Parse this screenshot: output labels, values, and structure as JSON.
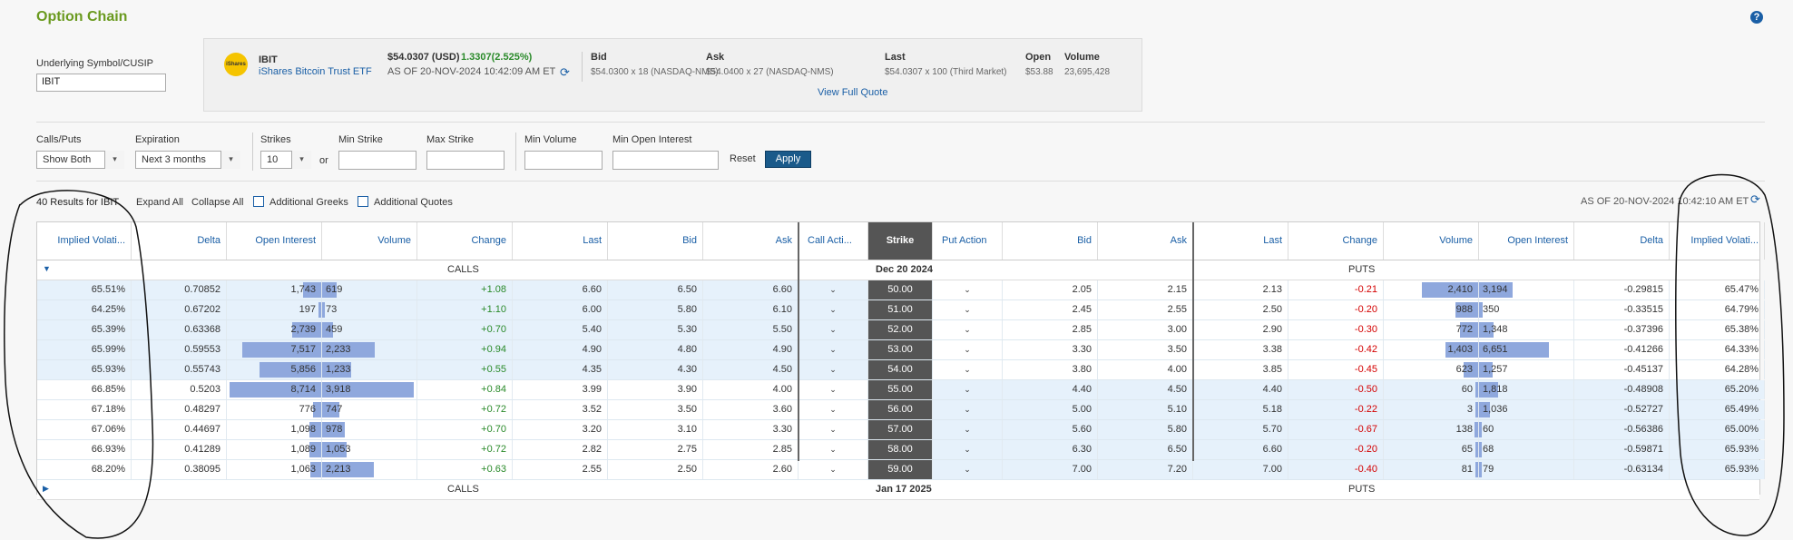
{
  "page": {
    "title": "Option Chain"
  },
  "underlying": {
    "label": "Underlying Symbol/CUSIP",
    "value": "IBIT"
  },
  "quote": {
    "logo_text": "iShares",
    "symbol": "IBIT",
    "name": "iShares Bitcoin Trust ETF",
    "price": "$54.0307 (USD)",
    "change": "1.3307(2.525%)",
    "asof": "AS OF 20-NOV-2024  10:42:09 AM ET",
    "bid_label": "Bid",
    "bid_value": "$54.0300 x 18 (NASDAQ-NMS)",
    "ask_label": "Ask",
    "ask_value": "$54.0400 x 27 (NASDAQ-NMS)",
    "last_label": "Last",
    "last_value": "$54.0307 x 100 (Third Market)",
    "open_label": "Open",
    "open_value": "$53.88",
    "volume_label": "Volume",
    "volume_value": "23,695,428",
    "full_quote": "View Full Quote"
  },
  "filters": {
    "calls_puts_label": "Calls/Puts",
    "calls_puts_value": "Show Both",
    "expiration_label": "Expiration",
    "expiration_value": "Next 3 months",
    "strikes_label": "Strikes",
    "strikes_value": "10",
    "or": "or",
    "min_strike_label": "Min Strike",
    "max_strike_label": "Max Strike",
    "min_volume_label": "Min Volume",
    "min_oi_label": "Min Open Interest",
    "reset": "Reset",
    "apply": "Apply"
  },
  "results": {
    "count_text": "40 Results for IBIT",
    "expand_all": "Expand All",
    "collapse_all": "Collapse All",
    "additional_greeks": "Additional Greeks",
    "additional_quotes": "Additional Quotes",
    "asof": "AS OF 20-NOV-2024  10:42:10 AM ET"
  },
  "table": {
    "headers": [
      "Implied Volati...",
      "Delta",
      "Open Interest",
      "Volume",
      "Change",
      "Last",
      "Bid",
      "Ask",
      "Call Acti...",
      "Strike",
      "Put Action",
      "Bid",
      "Ask",
      "Last",
      "Change",
      "Volume",
      "Open Interest",
      "Delta",
      "Implied Volati..."
    ],
    "sections": [
      {
        "calls": "CALLS",
        "date": "Dec 20 2024",
        "puts": "PUTS"
      },
      {
        "calls": "CALLS",
        "date": "Jan 17 2025",
        "puts": "PUTS"
      }
    ],
    "rows": [
      {
        "c_iv": "65.51%",
        "c_delta": "0.70852",
        "c_oi": "1,743",
        "c_vol": "619",
        "c_chg": "+1.08",
        "c_last": "6.60",
        "c_bid": "6.50",
        "c_ask": "6.60",
        "strike": "50.00",
        "p_bid": "2.05",
        "p_ask": "2.15",
        "p_last": "2.13",
        "p_chg": "-0.21",
        "p_vol": "2,410",
        "p_oi": "3,194",
        "p_delta": "-0.29815",
        "p_iv": "65.47%",
        "c_itm": true,
        "p_itm": false
      },
      {
        "c_iv": "64.25%",
        "c_delta": "0.67202",
        "c_oi": "197",
        "c_vol": "73",
        "c_chg": "+1.10",
        "c_last": "6.00",
        "c_bid": "5.80",
        "c_ask": "6.10",
        "strike": "51.00",
        "p_bid": "2.45",
        "p_ask": "2.55",
        "p_last": "2.50",
        "p_chg": "-0.20",
        "p_vol": "988",
        "p_oi": "350",
        "p_delta": "-0.33515",
        "p_iv": "64.79%",
        "c_itm": true,
        "p_itm": false
      },
      {
        "c_iv": "65.39%",
        "c_delta": "0.63368",
        "c_oi": "2,739",
        "c_vol": "459",
        "c_chg": "+0.70",
        "c_last": "5.40",
        "c_bid": "5.30",
        "c_ask": "5.50",
        "strike": "52.00",
        "p_bid": "2.85",
        "p_ask": "3.00",
        "p_last": "2.90",
        "p_chg": "-0.30",
        "p_vol": "772",
        "p_oi": "1,348",
        "p_delta": "-0.37396",
        "p_iv": "65.38%",
        "c_itm": true,
        "p_itm": false
      },
      {
        "c_iv": "65.99%",
        "c_delta": "0.59553",
        "c_oi": "7,517",
        "c_vol": "2,233",
        "c_chg": "+0.94",
        "c_last": "4.90",
        "c_bid": "4.80",
        "c_ask": "4.90",
        "strike": "53.00",
        "p_bid": "3.30",
        "p_ask": "3.50",
        "p_last": "3.38",
        "p_chg": "-0.42",
        "p_vol": "1,403",
        "p_oi": "6,651",
        "p_delta": "-0.41266",
        "p_iv": "64.33%",
        "c_itm": true,
        "p_itm": false
      },
      {
        "c_iv": "65.93%",
        "c_delta": "0.55743",
        "c_oi": "5,856",
        "c_vol": "1,233",
        "c_chg": "+0.55",
        "c_last": "4.35",
        "c_bid": "4.30",
        "c_ask": "4.50",
        "strike": "54.00",
        "p_bid": "3.80",
        "p_ask": "4.00",
        "p_last": "3.85",
        "p_chg": "-0.45",
        "p_vol": "623",
        "p_oi": "1,257",
        "p_delta": "-0.45137",
        "p_iv": "64.28%",
        "c_itm": true,
        "p_itm": false
      },
      {
        "c_iv": "66.85%",
        "c_delta": "0.5203",
        "c_oi": "8,714",
        "c_vol": "3,918",
        "c_chg": "+0.84",
        "c_last": "3.99",
        "c_bid": "3.90",
        "c_ask": "4.00",
        "strike": "55.00",
        "p_bid": "4.40",
        "p_ask": "4.50",
        "p_last": "4.40",
        "p_chg": "-0.50",
        "p_vol": "60",
        "p_oi": "1,818",
        "p_delta": "-0.48908",
        "p_iv": "65.20%",
        "c_itm": false,
        "p_itm": true
      },
      {
        "c_iv": "67.18%",
        "c_delta": "0.48297",
        "c_oi": "776",
        "c_vol": "747",
        "c_chg": "+0.72",
        "c_last": "3.52",
        "c_bid": "3.50",
        "c_ask": "3.60",
        "strike": "56.00",
        "p_bid": "5.00",
        "p_ask": "5.10",
        "p_last": "5.18",
        "p_chg": "-0.22",
        "p_vol": "3",
        "p_oi": "1,036",
        "p_delta": "-0.52727",
        "p_iv": "65.49%",
        "c_itm": false,
        "p_itm": true
      },
      {
        "c_iv": "67.06%",
        "c_delta": "0.44697",
        "c_oi": "1,098",
        "c_vol": "978",
        "c_chg": "+0.70",
        "c_last": "3.20",
        "c_bid": "3.10",
        "c_ask": "3.30",
        "strike": "57.00",
        "p_bid": "5.60",
        "p_ask": "5.80",
        "p_last": "5.70",
        "p_chg": "-0.67",
        "p_vol": "138",
        "p_oi": "60",
        "p_delta": "-0.56386",
        "p_iv": "65.00%",
        "c_itm": false,
        "p_itm": true
      },
      {
        "c_iv": "66.93%",
        "c_delta": "0.41289",
        "c_oi": "1,089",
        "c_vol": "1,053",
        "c_chg": "+0.72",
        "c_last": "2.82",
        "c_bid": "2.75",
        "c_ask": "2.85",
        "strike": "58.00",
        "p_bid": "6.30",
        "p_ask": "6.50",
        "p_last": "6.60",
        "p_chg": "-0.20",
        "p_vol": "65",
        "p_oi": "68",
        "p_delta": "-0.59871",
        "p_iv": "65.93%",
        "c_itm": false,
        "p_itm": true
      },
      {
        "c_iv": "68.20%",
        "c_delta": "0.38095",
        "c_oi": "1,063",
        "c_vol": "2,213",
        "c_chg": "+0.63",
        "c_last": "2.55",
        "c_bid": "2.50",
        "c_ask": "2.60",
        "strike": "59.00",
        "p_bid": "7.00",
        "p_ask": "7.20",
        "p_last": "7.00",
        "p_chg": "-0.40",
        "p_vol": "81",
        "p_oi": "79",
        "p_delta": "-0.63134",
        "p_iv": "65.93%",
        "c_itm": false,
        "p_itm": true
      }
    ]
  },
  "colors": {
    "accent": "#1a5fa6",
    "itm": "#e6f1fb",
    "bar": "#8fa8dd",
    "positive": "#2a8a2a",
    "negative": "#d40000",
    "strike_bg": "#555555",
    "title": "#6a9a1f"
  }
}
